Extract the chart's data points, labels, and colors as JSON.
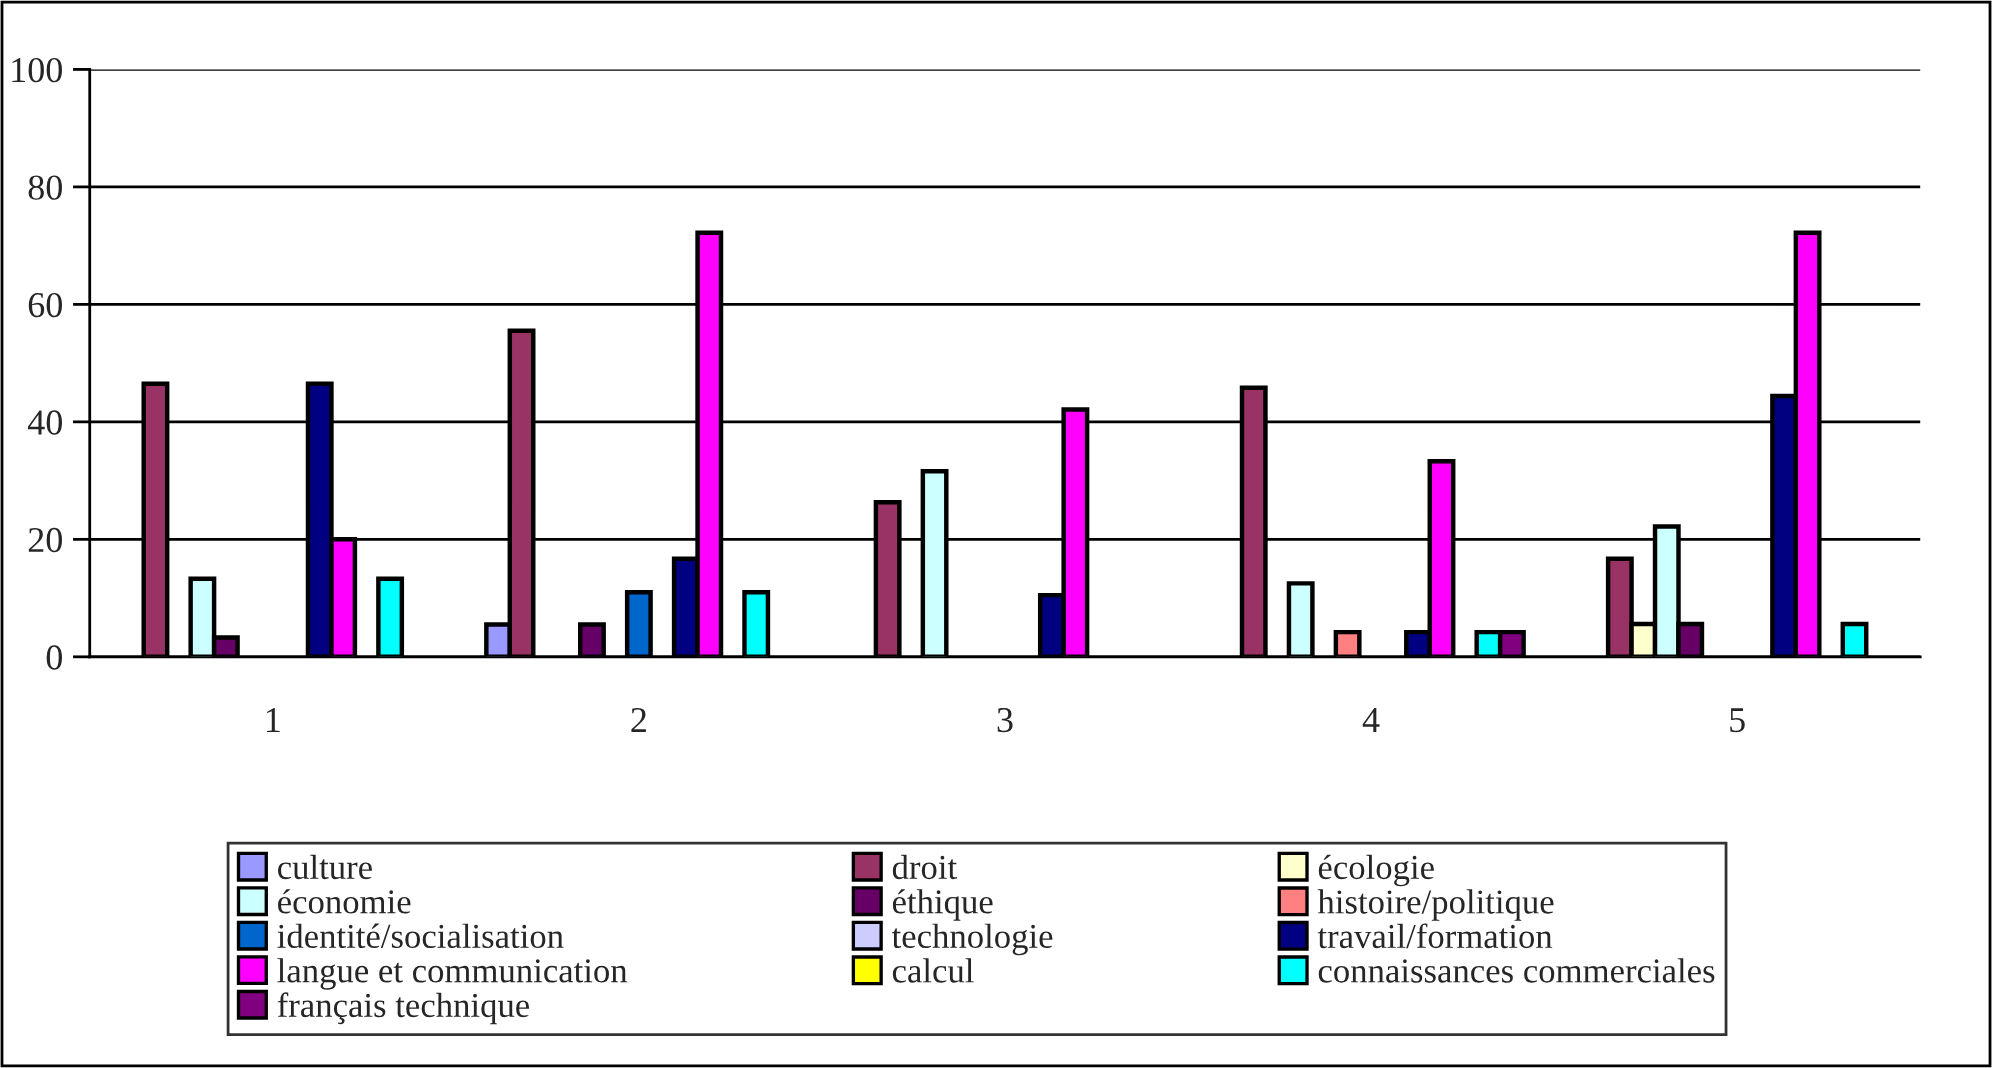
{
  "chart_data": {
    "type": "bar",
    "categories": [
      "1",
      "2",
      "3",
      "4",
      "5"
    ],
    "series": [
      {
        "name": "culture",
        "color": "#9999ff",
        "values": [
          null,
          5.5,
          null,
          null,
          null
        ]
      },
      {
        "name": "droit",
        "color": "#993366",
        "values": [
          46.5,
          55.5,
          26.3,
          45.8,
          16.7
        ]
      },
      {
        "name": "écologie",
        "color": "#ffffcc",
        "values": [
          null,
          null,
          null,
          null,
          5.6
        ]
      },
      {
        "name": "économie",
        "color": "#ccffff",
        "values": [
          13.3,
          null,
          31.6,
          12.5,
          22.2
        ]
      },
      {
        "name": "éthique",
        "color": "#660066",
        "values": [
          3.3,
          5.5,
          null,
          null,
          5.6
        ]
      },
      {
        "name": "histoire/politique",
        "color": "#ff8080",
        "values": [
          null,
          null,
          null,
          4.2,
          null
        ]
      },
      {
        "name": "identité/socialisation",
        "color": "#0066cc",
        "values": [
          null,
          11,
          null,
          null,
          null
        ]
      },
      {
        "name": "technologie",
        "color": "#ccccff",
        "values": [
          null,
          null,
          null,
          null,
          null
        ]
      },
      {
        "name": "travail/formation",
        "color": "#000080",
        "values": [
          46.5,
          16.7,
          10.5,
          4.2,
          44.4
        ]
      },
      {
        "name": "langue et communication",
        "color": "#ff00ff",
        "values": [
          20,
          72.2,
          42.1,
          33.3,
          72.2
        ]
      },
      {
        "name": "calcul",
        "color": "#ffff00",
        "values": [
          null,
          null,
          null,
          null,
          null
        ]
      },
      {
        "name": "connaissances commerciales",
        "color": "#00ffff",
        "values": [
          13.3,
          11,
          null,
          4.2,
          5.6
        ]
      },
      {
        "name": "français technique",
        "color": "#800080",
        "values": [
          null,
          null,
          null,
          4.2,
          null
        ]
      }
    ],
    "ylim": [
      0,
      100
    ],
    "yticks": [
      0,
      20,
      40,
      60,
      80,
      100
    ],
    "grid": "y",
    "legend": "bottom"
  }
}
